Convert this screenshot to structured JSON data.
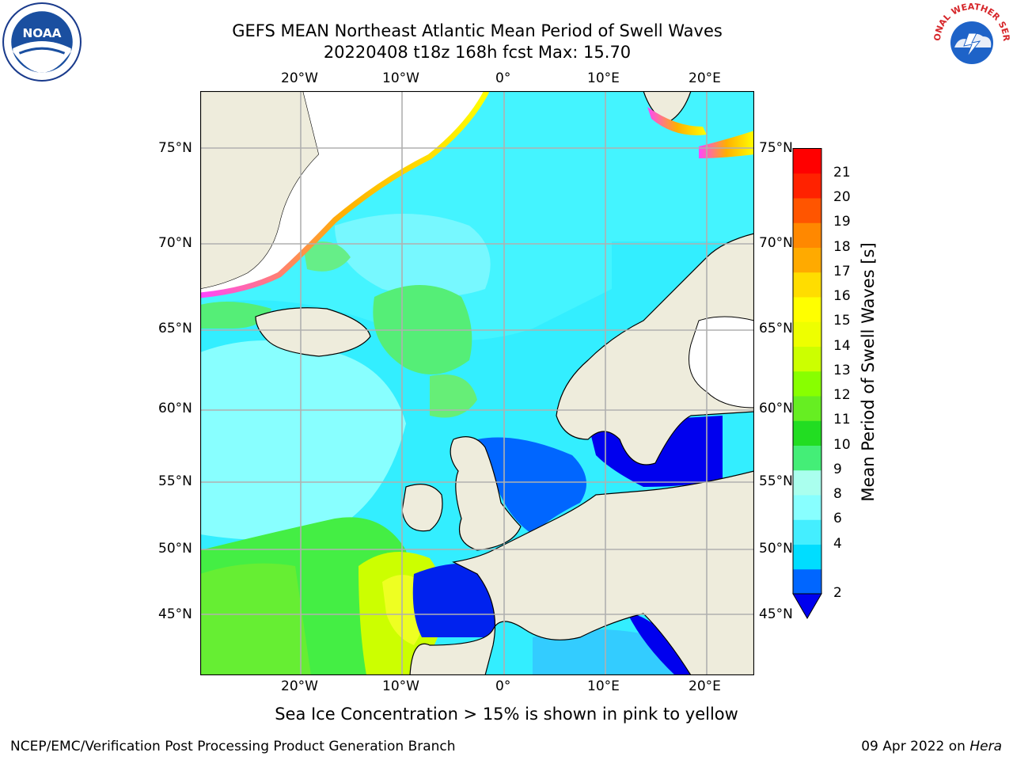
{
  "title": {
    "line1": "GEFS MEAN Northeast Atlantic Mean Period of Swell Waves",
    "line2": "20220408 t18z 168h fcst   Max: 15.70"
  },
  "map": {
    "lon_ticks_top": [
      "20°W",
      "10°W",
      "0°",
      "10°E",
      "20°E"
    ],
    "lon_ticks_bottom": [
      "20°W",
      "10°W",
      "0°",
      "10°E",
      "20°E"
    ],
    "lat_ticks_left": [
      "75°N",
      "70°N",
      "65°N",
      "60°N",
      "55°N",
      "50°N",
      "45°N"
    ],
    "lat_ticks_right": [
      "75°N",
      "70°N",
      "65°N",
      "60°N",
      "55°N",
      "50°N",
      "45°N"
    ],
    "colors": {
      "land": "#eeecdc",
      "coastline": "#000000",
      "gridlines": "#b0b0b0",
      "sea_ice_gradient": [
        "#ff44ff",
        "#ffb000",
        "#ffff00"
      ]
    }
  },
  "colorbar": {
    "title": "Mean Period of Swell Waves [s]",
    "tick_labels": [
      "2",
      "4",
      "6",
      "8",
      "9",
      "10",
      "11",
      "12",
      "13",
      "14",
      "15",
      "16",
      "17",
      "18",
      "19",
      "20",
      "21"
    ],
    "colors": [
      "#0066ff",
      "#00ddff",
      "#44eeff",
      "#88ffff",
      "#aaffee",
      "#44ee77",
      "#22dd22",
      "#66ee22",
      "#88ff00",
      "#ccff00",
      "#eeff00",
      "#ffff00",
      "#ffdd00",
      "#ffaa00",
      "#ff8800",
      "#ff5500",
      "#ff2200",
      "#ff0000"
    ],
    "under_color": "#0000ee"
  },
  "footer": {
    "note": "Sea Ice Concentration > 15% is shown in pink to yellow",
    "credit_left": "NCEP/EMC/Verification Post Processing Product Generation Branch",
    "credit_date": "09 Apr 2022 on ",
    "credit_machine": "Hera"
  },
  "logos": {
    "noaa_text": "NOAA",
    "nws_text": "NATIONAL WEATHER SERVICE"
  }
}
